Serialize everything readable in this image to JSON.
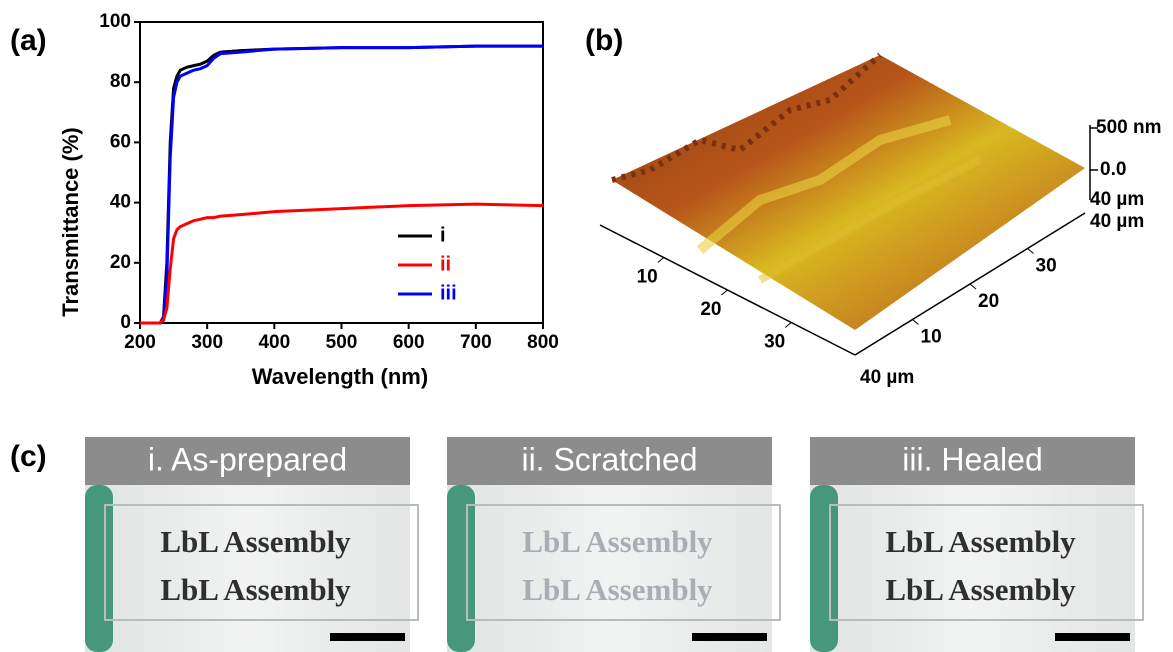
{
  "chart_data": {
    "type": "line",
    "panel_label": "(a)",
    "x_label": "Wavelength (nm)",
    "y_label": "Transmittance  (%)",
    "xlim": [
      200,
      800
    ],
    "ylim": [
      0,
      100
    ],
    "xticks": [
      200,
      300,
      400,
      500,
      600,
      700,
      800
    ],
    "yticks": [
      0,
      20,
      40,
      60,
      80,
      100
    ],
    "x": [
      200,
      220,
      230,
      235,
      240,
      245,
      250,
      255,
      260,
      270,
      280,
      290,
      300,
      310,
      320,
      350,
      400,
      500,
      600,
      700,
      800
    ],
    "series": [
      {
        "name": "i",
        "color": "#000000",
        "values": [
          0,
          0,
          0,
          2,
          20,
          60,
          78,
          82,
          84,
          85,
          85.5,
          86,
          87,
          89,
          90,
          90.5,
          91,
          91.5,
          91.5,
          92,
          92
        ]
      },
      {
        "name": "ii",
        "color": "#ff0000",
        "values": [
          0,
          0,
          0,
          1,
          5,
          18,
          28,
          31,
          32,
          33,
          34,
          34.5,
          35,
          35,
          35.5,
          36,
          37,
          38,
          39,
          39.5,
          39
        ]
      },
      {
        "name": "iii",
        "color": "#0000ff",
        "values": [
          0,
          0,
          0,
          1,
          15,
          55,
          75,
          80,
          82,
          83,
          84,
          84.5,
          85.5,
          88,
          89.5,
          90,
          91,
          91.5,
          91.5,
          92,
          92
        ]
      }
    ]
  },
  "afm_image": {
    "panel_label": "(b)",
    "z_top": "500 nm",
    "z_zero": "0.0",
    "z_side": "40 µm",
    "z_corner": "40 µm",
    "left_axis": [
      "10",
      "20",
      "30"
    ],
    "bottom_label": "40 µm",
    "right_axis": [
      "10",
      "20",
      "30"
    ]
  },
  "photos": {
    "panel_label": "(c)",
    "panels": [
      {
        "title": "i. As-prepared",
        "lines": [
          "LbL Assembly",
          "LbL Assembly"
        ]
      },
      {
        "title": "ii. Scratched",
        "lines": [
          "LbL Assembly",
          "LbL Assembly"
        ]
      },
      {
        "title": "iii. Healed",
        "lines": [
          "LbL Assembly",
          "LbL Assembly"
        ]
      }
    ]
  }
}
